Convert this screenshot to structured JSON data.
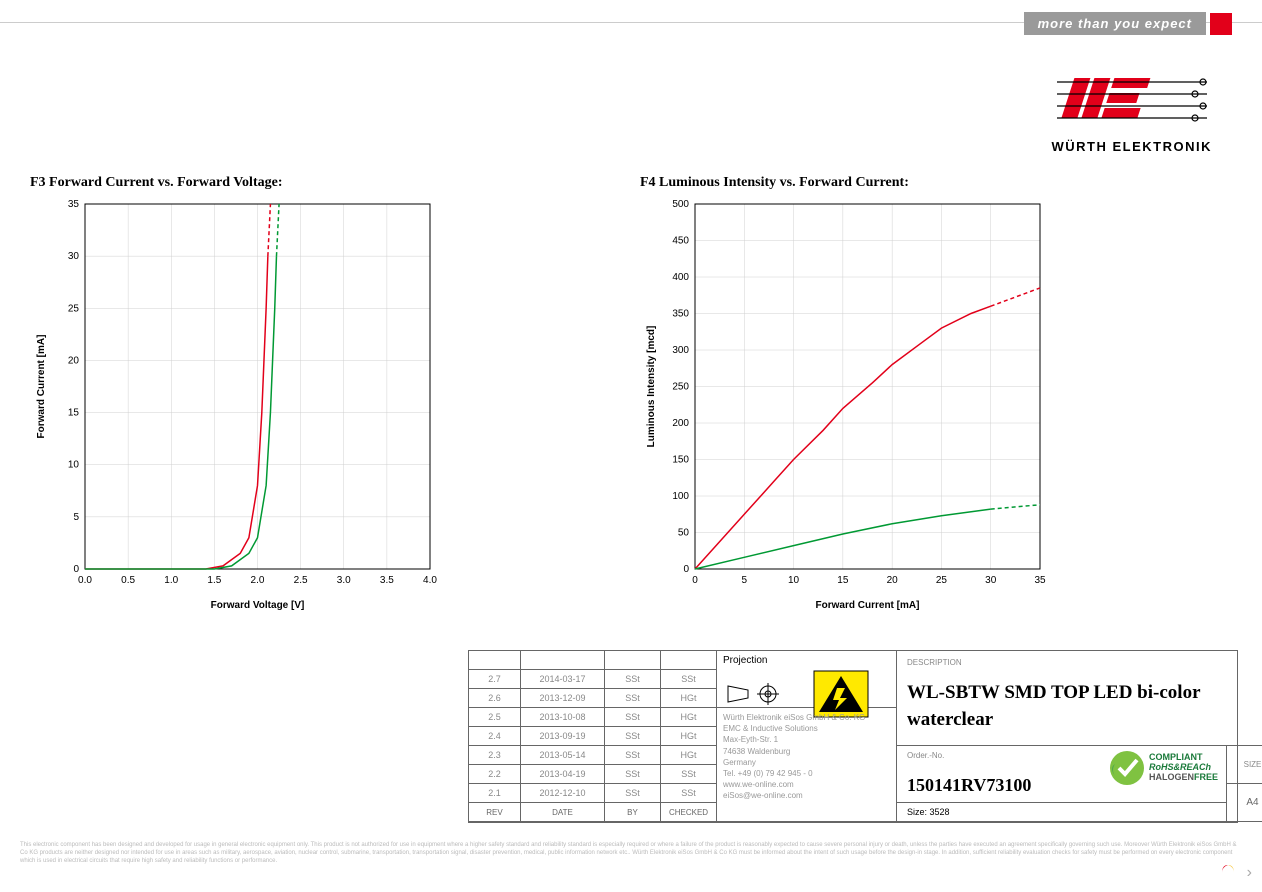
{
  "header": {
    "slogan": "more than you expect",
    "brand": "WÜRTH ELEKTRONIK"
  },
  "chart_f3": {
    "title": "F3 Forward Current vs. Forward Voltage:",
    "type": "line",
    "xlabel": "Forward Voltage [V]",
    "ylabel": "Forward Current [mA]",
    "label_fontsize": 10,
    "xlim": [
      0.0,
      4.0
    ],
    "ylim": [
      0,
      35
    ],
    "xtick_step": 0.5,
    "ytick_step": 5,
    "background_color": "#ffffff",
    "grid_color": "#d0d0d0",
    "axis_color": "#000000",
    "line_width": 1.5,
    "series": [
      {
        "name": "red",
        "color": "#e2001a",
        "dash_above": 30,
        "points": [
          [
            0,
            0
          ],
          [
            0.5,
            0
          ],
          [
            1.0,
            0
          ],
          [
            1.4,
            0
          ],
          [
            1.6,
            0.3
          ],
          [
            1.8,
            1.5
          ],
          [
            1.9,
            3
          ],
          [
            2.0,
            8
          ],
          [
            2.05,
            15
          ],
          [
            2.1,
            25
          ],
          [
            2.12,
            30
          ],
          [
            2.15,
            35
          ]
        ]
      },
      {
        "name": "green",
        "color": "#009933",
        "dash_above": 30,
        "points": [
          [
            0,
            0
          ],
          [
            0.5,
            0
          ],
          [
            1.0,
            0
          ],
          [
            1.5,
            0
          ],
          [
            1.7,
            0.3
          ],
          [
            1.9,
            1.5
          ],
          [
            2.0,
            3
          ],
          [
            2.1,
            8
          ],
          [
            2.15,
            15
          ],
          [
            2.2,
            25
          ],
          [
            2.22,
            30
          ],
          [
            2.25,
            35
          ]
        ]
      }
    ]
  },
  "chart_f4": {
    "title": "F4 Luminous Intensity vs. Forward Current:",
    "type": "line",
    "xlabel": "Forward Current [mA]",
    "ylabel": "Luminous Intensity [mcd]",
    "label_fontsize": 10,
    "xlim": [
      0,
      35
    ],
    "ylim": [
      0,
      500
    ],
    "xtick_step": 5,
    "ytick_step": 50,
    "background_color": "#ffffff",
    "grid_color": "#d0d0d0",
    "axis_color": "#000000",
    "line_width": 1.5,
    "series": [
      {
        "name": "red",
        "color": "#e2001a",
        "dash_above_x": 30,
        "points": [
          [
            0,
            0
          ],
          [
            2,
            30
          ],
          [
            5,
            75
          ],
          [
            8,
            120
          ],
          [
            10,
            150
          ],
          [
            13,
            190
          ],
          [
            15,
            220
          ],
          [
            18,
            255
          ],
          [
            20,
            280
          ],
          [
            23,
            310
          ],
          [
            25,
            330
          ],
          [
            28,
            350
          ],
          [
            30,
            360
          ],
          [
            33,
            375
          ],
          [
            35,
            385
          ]
        ]
      },
      {
        "name": "green",
        "color": "#009933",
        "dash_above_x": 30,
        "points": [
          [
            0,
            0
          ],
          [
            5,
            16
          ],
          [
            10,
            32
          ],
          [
            15,
            48
          ],
          [
            20,
            62
          ],
          [
            25,
            73
          ],
          [
            30,
            82
          ],
          [
            35,
            88
          ]
        ]
      }
    ]
  },
  "title_block": {
    "projection_label": "Projection",
    "description_label": "DESCRIPTION",
    "description": "WL-SBTW SMD TOP LED bi-color waterclear",
    "order_label": "Order.-No.",
    "order_no": "150141RV73100",
    "size_label": "Size:",
    "size_value": "3528",
    "page_label": "SIZE",
    "page_value": "A4",
    "compliance": "COMPLIANT RoHS&REACh HALOGENFREE",
    "company": [
      "Würth Elektronik eiSos GmbH & Co. KG",
      "EMC & Inductive Solutions",
      "Max-Eyth-Str. 1",
      "74638 Waldenburg",
      "Germany",
      "Tel. +49 (0) 79 42 945 - 0",
      "www.we-online.com",
      "eiSos@we-online.com"
    ],
    "revisions": [
      {
        "rev": "2.7",
        "date": "2014-03-17",
        "by": "SSt",
        "checked": "SSt"
      },
      {
        "rev": "2.6",
        "date": "2013-12-09",
        "by": "SSt",
        "checked": "HGt"
      },
      {
        "rev": "2.5",
        "date": "2013-10-08",
        "by": "SSt",
        "checked": "HGt"
      },
      {
        "rev": "2.4",
        "date": "2013-09-19",
        "by": "SSt",
        "checked": "HGt"
      },
      {
        "rev": "2.3",
        "date": "2013-05-14",
        "by": "SSt",
        "checked": "HGt"
      },
      {
        "rev": "2.2",
        "date": "2013-04-19",
        "by": "SSt",
        "checked": "SSt"
      },
      {
        "rev": "2.1",
        "date": "2012-12-10",
        "by": "SSt",
        "checked": "SSt"
      }
    ],
    "rev_headers": [
      "REV",
      "DATE",
      "BY",
      "CHECKED"
    ]
  },
  "disclaimer": "This electronic component has been designed and developed for usage in general electronic equipment only. This product is not authorized for use in equipment where a higher safety standard and reliability standard is especially required or where a failure of the product is reasonably expected to cause severe personal injury or death, unless the parties have executed an agreement specifically governing such use. Moreover Würth Elektronik eiSos GmbH & Co KG products are neither designed nor intended for use in areas such as military, aerospace, aviation, nuclear control, submarine, transportation, transportation signal, disaster prevention, medical, public information network etc.. Würth Elektronik eiSos GmbH & Co KG must be informed about the intent of such usage before the design-in stage. In addition, sufficient reliability evaluation checks for safety must be performed on every electronic component which is used in electrical circuits that require high safety and reliability functions or performance."
}
